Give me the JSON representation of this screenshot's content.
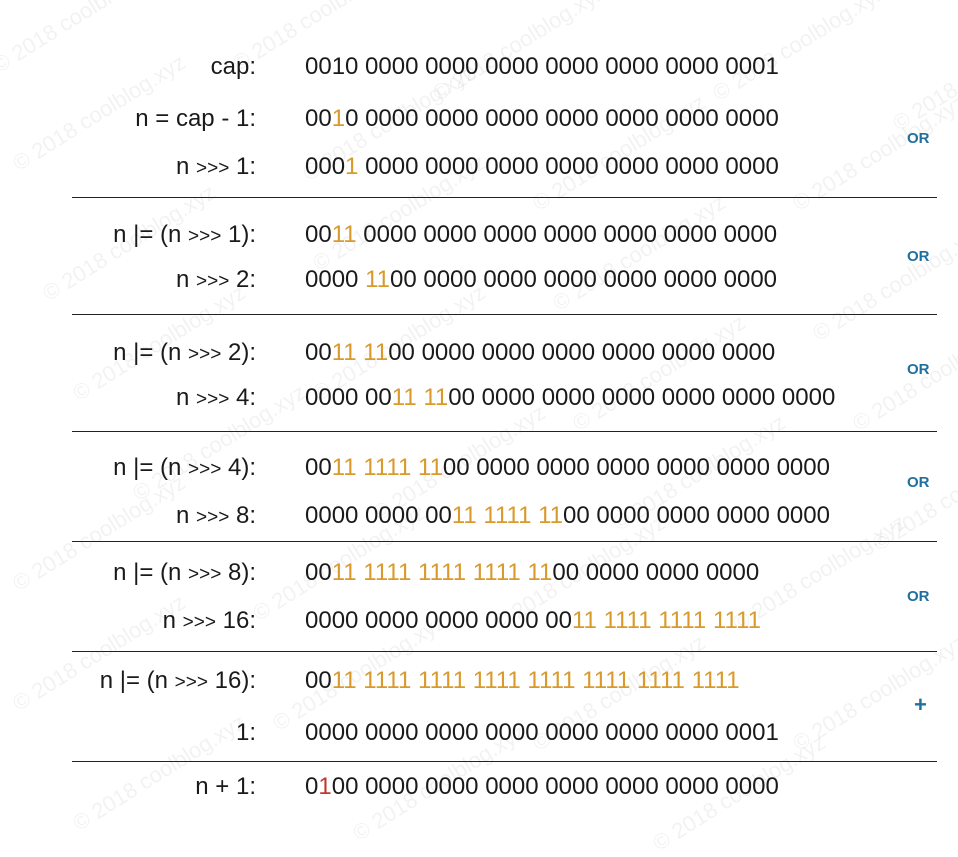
{
  "watermark": "© 2018 coolblog.xyz",
  "operators": {
    "or": "OR",
    "plus": "+"
  },
  "rows": [
    {
      "label_parts": [
        "cap:"
      ],
      "bits": [
        [
          "0010 0000 0000 0000 0000 0000 0000 0001",
          "n"
        ]
      ]
    },
    {
      "label_parts": [
        "n = cap - 1:"
      ],
      "bits": [
        [
          "00",
          "n"
        ],
        [
          "1",
          "h"
        ],
        [
          "0 0000 0000 0000 0000 0000 0000 0000",
          "n"
        ]
      ]
    },
    {
      "label_parts": [
        "n ",
        ">>>",
        " 1:"
      ],
      "bits": [
        [
          "000",
          "n"
        ],
        [
          "1",
          "h"
        ],
        [
          " 0000 0000 0000 0000 0000 0000 0000",
          "n"
        ]
      ]
    },
    {
      "label_parts": [
        "n |= (n ",
        ">>>",
        " 1):"
      ],
      "bits": [
        [
          "00",
          "n"
        ],
        [
          "11",
          "h"
        ],
        [
          " 0000 0000 0000 0000 0000 0000 0000",
          "n"
        ]
      ]
    },
    {
      "label_parts": [
        "n ",
        ">>>",
        " 2:"
      ],
      "bits": [
        [
          "0000 ",
          "n"
        ],
        [
          "11",
          "h"
        ],
        [
          "00 0000 0000 0000 0000 0000 0000",
          "n"
        ]
      ]
    },
    {
      "label_parts": [
        "n |= (n ",
        ">>>",
        " 2):"
      ],
      "bits": [
        [
          "00",
          "n"
        ],
        [
          "11 11",
          "h"
        ],
        [
          "00 0000 0000 0000 0000 0000 0000",
          "n"
        ]
      ]
    },
    {
      "label_parts": [
        "n ",
        ">>>",
        " 4:"
      ],
      "bits": [
        [
          "0000 00",
          "n"
        ],
        [
          "11 11",
          "h"
        ],
        [
          "00 0000 0000 0000 0000 0000 0000",
          "n"
        ]
      ]
    },
    {
      "label_parts": [
        "n |= (n ",
        ">>>",
        " 4):"
      ],
      "bits": [
        [
          "00",
          "n"
        ],
        [
          "11 1111 11",
          "h"
        ],
        [
          "00 0000 0000 0000 0000 0000 0000",
          "n"
        ]
      ]
    },
    {
      "label_parts": [
        "n ",
        ">>>",
        " 8:"
      ],
      "bits": [
        [
          "0000 0000 00",
          "n"
        ],
        [
          "11 1111 11",
          "h"
        ],
        [
          "00 0000 0000 0000 0000",
          "n"
        ]
      ]
    },
    {
      "label_parts": [
        "n |= (n ",
        ">>>",
        " 8):"
      ],
      "bits": [
        [
          "00",
          "n"
        ],
        [
          "11 1111 1111 1111 11",
          "h"
        ],
        [
          "00 0000 0000 0000",
          "n"
        ]
      ]
    },
    {
      "label_parts": [
        "n ",
        ">>>",
        " 16:"
      ],
      "bits": [
        [
          "0000 0000 0000 0000 00",
          "n"
        ],
        [
          "11 1111 1111 1111",
          "h"
        ]
      ]
    },
    {
      "label_parts": [
        "n |= (n ",
        ">>>",
        " 16):"
      ],
      "bits": [
        [
          "00",
          "n"
        ],
        [
          "11 1111 1111 1111 1111 1111 1111 1111",
          "h"
        ]
      ]
    },
    {
      "label_parts": [
        "1:"
      ],
      "bits": [
        [
          "0000 0000 0000 0000 0000 0000 0000 0001",
          "n"
        ]
      ]
    },
    {
      "label_parts": [
        "n + 1:"
      ],
      "bits": [
        [
          "0",
          "n"
        ],
        [
          "1",
          "r"
        ],
        [
          "00 0000 0000 0000 0000 0000 0000 0000",
          "n"
        ]
      ]
    }
  ]
}
